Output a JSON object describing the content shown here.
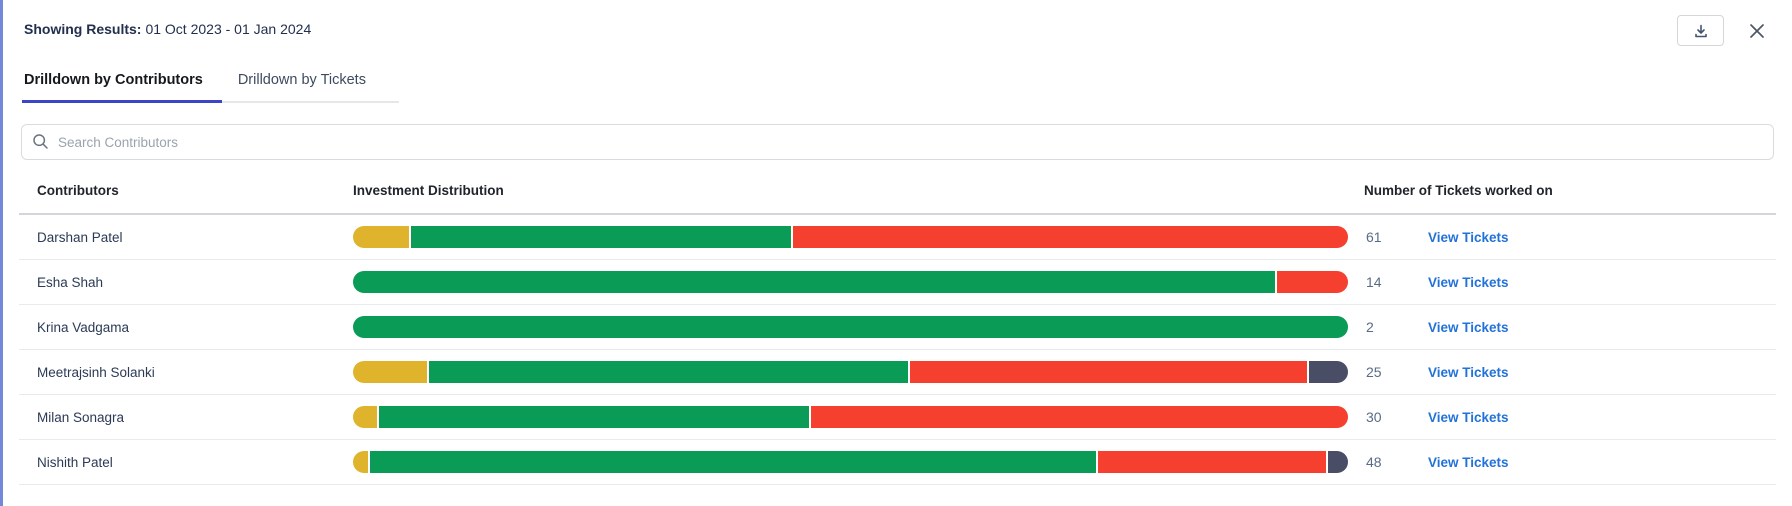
{
  "header": {
    "showing_label": "Showing Results:",
    "date_range": "01 Oct 2023 - 01 Jan 2024"
  },
  "actions": {
    "download_icon": "download-tray-icon",
    "close_icon": "close-x-icon"
  },
  "tabs": [
    {
      "label": "Drilldown by Contributors",
      "active": true
    },
    {
      "label": "Drilldown by Tickets",
      "active": false
    }
  ],
  "search": {
    "placeholder": "Search Contributors",
    "icon": "magnifier-icon"
  },
  "table": {
    "columns": [
      "Contributors",
      "Investment Distribution",
      "Number of Tickets worked on"
    ],
    "view_tickets_label": "View Tickets",
    "rows": [
      {
        "name": "Darshan Patel",
        "tickets": "61",
        "segments": [
          {
            "color": "yellow",
            "pct": 5.7
          },
          {
            "color": "green",
            "pct": 38.3
          },
          {
            "color": "red",
            "pct": 56.0
          }
        ]
      },
      {
        "name": "Esha Shah",
        "tickets": "14",
        "segments": [
          {
            "color": "green",
            "pct": 92.8
          },
          {
            "color": "red",
            "pct": 7.2
          }
        ]
      },
      {
        "name": "Krina Vadgama",
        "tickets": "2",
        "segments": [
          {
            "color": "green",
            "pct": 100
          }
        ]
      },
      {
        "name": "Meetrajsinh Solanki",
        "tickets": "25",
        "segments": [
          {
            "color": "yellow",
            "pct": 7.5
          },
          {
            "color": "green",
            "pct": 48.4
          },
          {
            "color": "red",
            "pct": 40.2
          },
          {
            "color": "dark",
            "pct": 3.9
          }
        ]
      },
      {
        "name": "Milan Sonagra",
        "tickets": "30",
        "segments": [
          {
            "color": "yellow",
            "pct": 2.4
          },
          {
            "color": "green",
            "pct": 43.4
          },
          {
            "color": "red",
            "pct": 54.2
          }
        ]
      },
      {
        "name": "Nishith Patel",
        "tickets": "48",
        "segments": [
          {
            "color": "yellow",
            "pct": 1.5
          },
          {
            "color": "green",
            "pct": 73.4
          },
          {
            "color": "red",
            "pct": 23.1
          },
          {
            "color": "dark",
            "pct": 2.0
          }
        ]
      }
    ]
  },
  "colors": {
    "yellow": "#E0B32C",
    "green": "#0A9B57",
    "red": "#F5402F",
    "dark": "#4A4D66",
    "tab_accent": "#3C45C8",
    "link_blue": "#2272D8",
    "left_edge_blue": "#7388D9"
  }
}
